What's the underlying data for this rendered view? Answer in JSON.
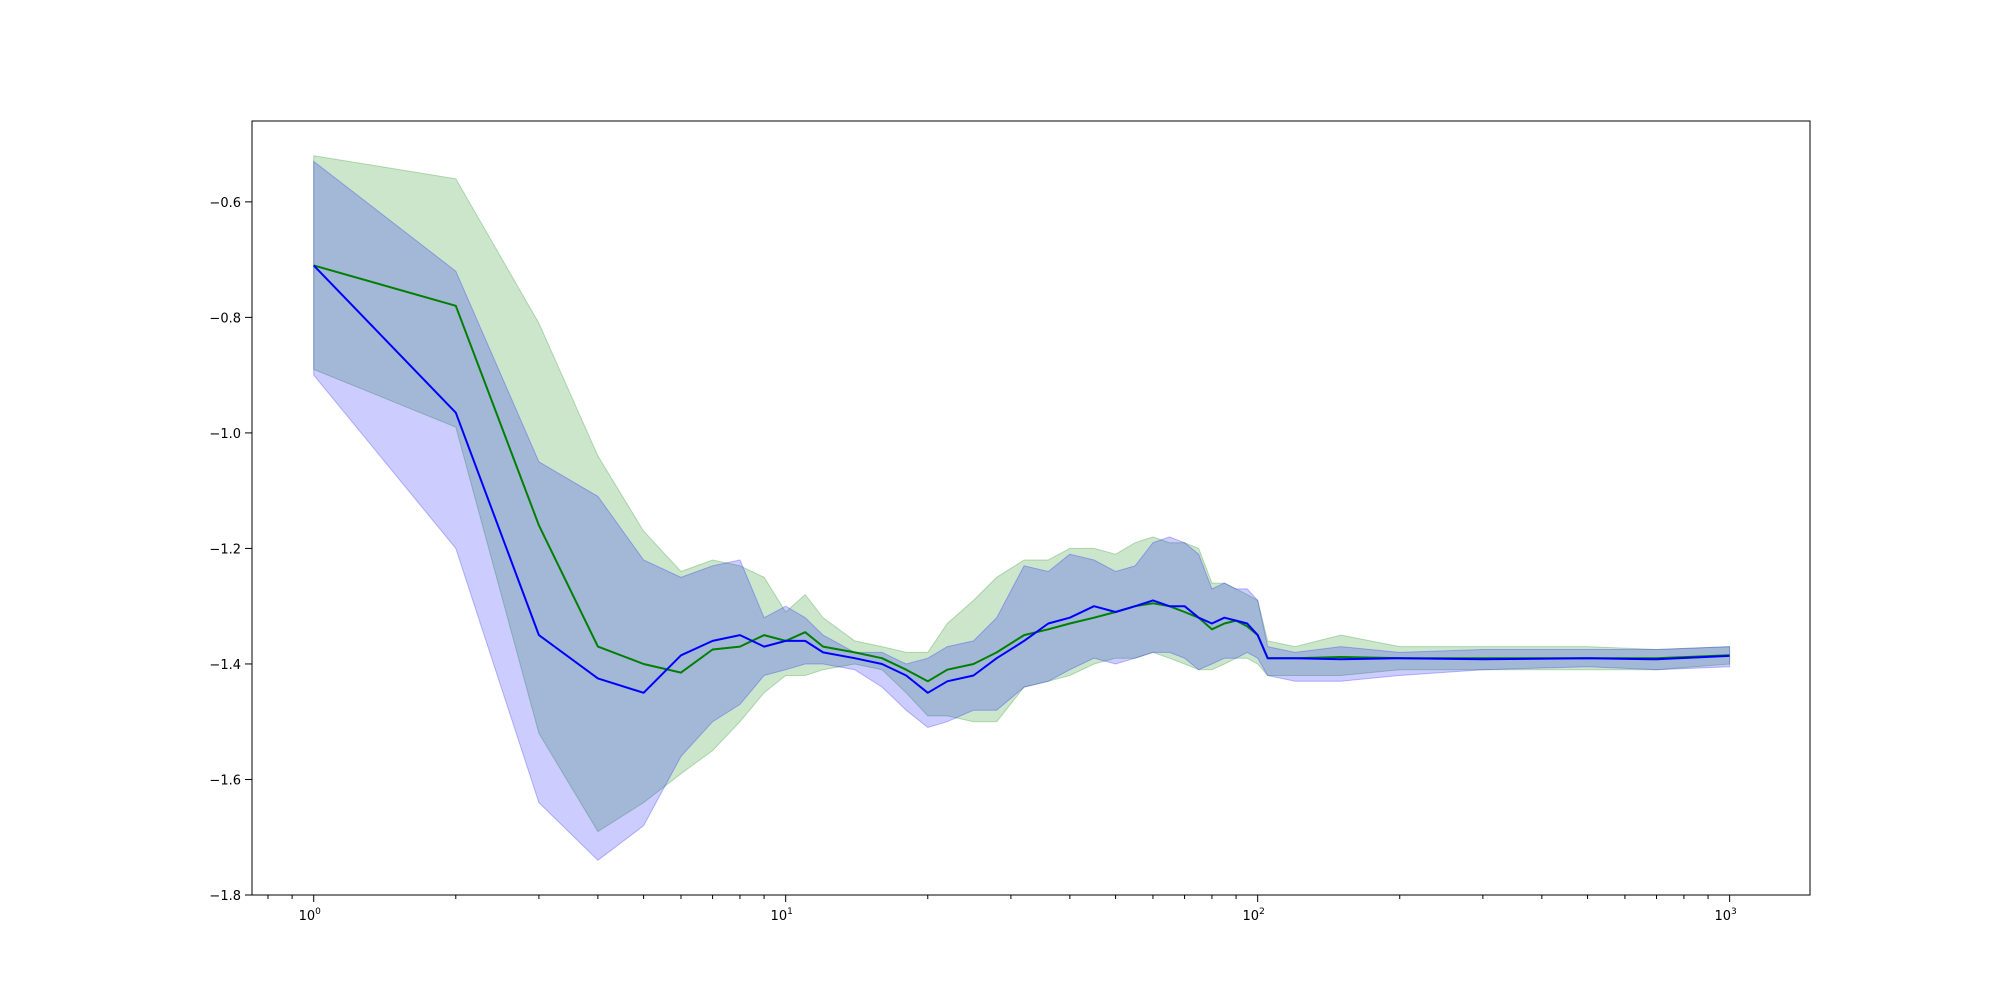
{
  "chart_data": {
    "type": "line",
    "title": "",
    "xlabel": "",
    "ylabel": "",
    "xscale": "log",
    "xlim": [
      0.74,
      1480
    ],
    "ylim": [
      -1.8,
      -0.46
    ],
    "grid": false,
    "x_ticks": [
      {
        "value": 1,
        "base": "10",
        "exp": "0"
      },
      {
        "value": 10,
        "base": "10",
        "exp": "1"
      },
      {
        "value": 100,
        "base": "10",
        "exp": "2"
      },
      {
        "value": 1000,
        "base": "10",
        "exp": "3"
      }
    ],
    "y_ticks": [
      {
        "value": -0.6,
        "label": "−0.6"
      },
      {
        "value": -0.8,
        "label": "−0.8"
      },
      {
        "value": -1.0,
        "label": "−1.0"
      },
      {
        "value": -1.2,
        "label": "−1.2"
      },
      {
        "value": -1.4,
        "label": "−1.4"
      },
      {
        "value": -1.6,
        "label": "−1.6"
      },
      {
        "value": -1.8,
        "label": "−1.8"
      }
    ],
    "series": [
      {
        "color": "#008000",
        "band_color": "#008000",
        "band_opacity": 0.2,
        "x": [
          1,
          2,
          3,
          4,
          5,
          6,
          7,
          8,
          9,
          10,
          11,
          12,
          14,
          16,
          18,
          20,
          22,
          25,
          28,
          32,
          36,
          40,
          45,
          50,
          55,
          60,
          65,
          70,
          75,
          80,
          85,
          90,
          95,
          100,
          105,
          120,
          150,
          200,
          300,
          500,
          700,
          1000
        ],
        "y": [
          -0.71,
          -0.78,
          -1.16,
          -1.37,
          -1.4,
          -1.415,
          -1.375,
          -1.37,
          -1.35,
          -1.36,
          -1.345,
          -1.37,
          -1.38,
          -1.39,
          -1.41,
          -1.43,
          -1.41,
          -1.4,
          -1.38,
          -1.35,
          -1.34,
          -1.33,
          -1.32,
          -1.31,
          -1.3,
          -1.295,
          -1.3,
          -1.31,
          -1.32,
          -1.34,
          -1.33,
          -1.325,
          -1.335,
          -1.35,
          -1.39,
          -1.39,
          -1.388,
          -1.39,
          -1.39,
          -1.39,
          -1.39,
          -1.385
        ],
        "upper": [
          -0.52,
          -0.56,
          -0.81,
          -1.04,
          -1.17,
          -1.24,
          -1.22,
          -1.23,
          -1.25,
          -1.31,
          -1.28,
          -1.32,
          -1.36,
          -1.37,
          -1.38,
          -1.38,
          -1.33,
          -1.29,
          -1.25,
          -1.22,
          -1.22,
          -1.2,
          -1.2,
          -1.21,
          -1.19,
          -1.18,
          -1.19,
          -1.19,
          -1.2,
          -1.26,
          -1.26,
          -1.27,
          -1.28,
          -1.29,
          -1.36,
          -1.37,
          -1.35,
          -1.37,
          -1.37,
          -1.37,
          -1.375,
          -1.37
        ],
        "lower": [
          -0.89,
          -0.99,
          -1.52,
          -1.69,
          -1.64,
          -1.59,
          -1.55,
          -1.5,
          -1.45,
          -1.42,
          -1.42,
          -1.41,
          -1.4,
          -1.41,
          -1.45,
          -1.49,
          -1.49,
          -1.5,
          -1.5,
          -1.44,
          -1.43,
          -1.42,
          -1.4,
          -1.39,
          -1.39,
          -1.38,
          -1.39,
          -1.4,
          -1.41,
          -1.41,
          -1.4,
          -1.39,
          -1.39,
          -1.4,
          -1.42,
          -1.42,
          -1.42,
          -1.41,
          -1.41,
          -1.41,
          -1.41,
          -1.4
        ]
      },
      {
        "color": "#0000ff",
        "band_color": "#0000ff",
        "band_opacity": 0.2,
        "x": [
          1,
          2,
          3,
          4,
          5,
          6,
          7,
          8,
          9,
          10,
          11,
          12,
          14,
          16,
          18,
          20,
          22,
          25,
          28,
          32,
          36,
          40,
          45,
          50,
          55,
          60,
          65,
          70,
          75,
          80,
          85,
          90,
          95,
          100,
          105,
          120,
          150,
          200,
          300,
          500,
          700,
          1000
        ],
        "y": [
          -0.71,
          -0.965,
          -1.35,
          -1.425,
          -1.45,
          -1.385,
          -1.36,
          -1.35,
          -1.37,
          -1.36,
          -1.36,
          -1.38,
          -1.39,
          -1.4,
          -1.42,
          -1.45,
          -1.43,
          -1.42,
          -1.39,
          -1.36,
          -1.33,
          -1.32,
          -1.3,
          -1.31,
          -1.3,
          -1.29,
          -1.3,
          -1.3,
          -1.32,
          -1.33,
          -1.32,
          -1.325,
          -1.33,
          -1.35,
          -1.39,
          -1.39,
          -1.392,
          -1.39,
          -1.392,
          -1.39,
          -1.392,
          -1.386
        ],
        "upper": [
          -0.53,
          -0.72,
          -1.05,
          -1.11,
          -1.22,
          -1.25,
          -1.23,
          -1.22,
          -1.32,
          -1.3,
          -1.32,
          -1.35,
          -1.38,
          -1.38,
          -1.4,
          -1.39,
          -1.37,
          -1.36,
          -1.32,
          -1.23,
          -1.24,
          -1.21,
          -1.22,
          -1.24,
          -1.23,
          -1.19,
          -1.18,
          -1.19,
          -1.21,
          -1.27,
          -1.26,
          -1.27,
          -1.27,
          -1.29,
          -1.37,
          -1.38,
          -1.37,
          -1.38,
          -1.375,
          -1.375,
          -1.375,
          -1.37
        ],
        "lower": [
          -0.9,
          -1.2,
          -1.64,
          -1.74,
          -1.68,
          -1.56,
          -1.5,
          -1.47,
          -1.42,
          -1.41,
          -1.4,
          -1.4,
          -1.41,
          -1.44,
          -1.48,
          -1.51,
          -1.5,
          -1.48,
          -1.48,
          -1.44,
          -1.43,
          -1.41,
          -1.39,
          -1.4,
          -1.39,
          -1.38,
          -1.38,
          -1.39,
          -1.41,
          -1.4,
          -1.39,
          -1.39,
          -1.38,
          -1.39,
          -1.42,
          -1.43,
          -1.43,
          -1.42,
          -1.41,
          -1.405,
          -1.41,
          -1.405
        ]
      }
    ]
  }
}
